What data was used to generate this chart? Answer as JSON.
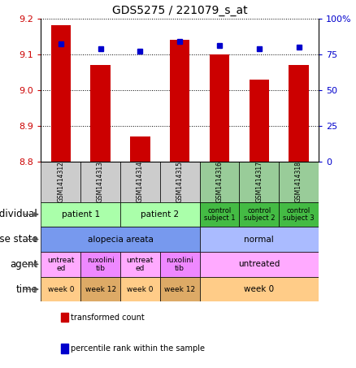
{
  "title": "GDS5275 / 221079_s_at",
  "samples": [
    "GSM1414312",
    "GSM1414313",
    "GSM1414314",
    "GSM1414315",
    "GSM1414316",
    "GSM1414317",
    "GSM1414318"
  ],
  "transformed_count": [
    9.18,
    9.07,
    8.87,
    9.14,
    9.1,
    9.03,
    9.07
  ],
  "percentile_rank": [
    82,
    79,
    77,
    84,
    81,
    79,
    80
  ],
  "ylim_left": [
    8.8,
    9.2
  ],
  "ylim_right": [
    0,
    100
  ],
  "yticks_left": [
    8.8,
    8.9,
    9.0,
    9.1,
    9.2
  ],
  "yticks_right": [
    0,
    25,
    50,
    75,
    100
  ],
  "ytick_labels_right": [
    "0",
    "25",
    "50",
    "75",
    "100%"
  ],
  "bar_color": "#cc0000",
  "dot_color": "#0000cc",
  "gsm_colors": [
    "#cccccc",
    "#cccccc",
    "#cccccc",
    "#cccccc",
    "#99cc99",
    "#99cc99",
    "#99cc99"
  ],
  "metadata_rows": [
    {
      "label": "individual",
      "cells": [
        {
          "text": "patient 1",
          "span": 2,
          "color": "#aaffaa",
          "fontsize": 7.5
        },
        {
          "text": "patient 2",
          "span": 2,
          "color": "#aaffaa",
          "fontsize": 7.5
        },
        {
          "text": "control\nsubject 1",
          "span": 1,
          "color": "#44bb44",
          "fontsize": 6.0
        },
        {
          "text": "control\nsubject 2",
          "span": 1,
          "color": "#44bb44",
          "fontsize": 6.0
        },
        {
          "text": "control\nsubject 3",
          "span": 1,
          "color": "#44bb44",
          "fontsize": 6.0
        }
      ]
    },
    {
      "label": "disease state",
      "cells": [
        {
          "text": "alopecia areata",
          "span": 4,
          "color": "#7799ee",
          "fontsize": 7.5
        },
        {
          "text": "normal",
          "span": 3,
          "color": "#aabbff",
          "fontsize": 7.5
        }
      ]
    },
    {
      "label": "agent",
      "cells": [
        {
          "text": "untreat\ned",
          "span": 1,
          "color": "#ffaaff",
          "fontsize": 6.5
        },
        {
          "text": "ruxolini\ntib",
          "span": 1,
          "color": "#ee88ff",
          "fontsize": 6.5
        },
        {
          "text": "untreat\ned",
          "span": 1,
          "color": "#ffaaff",
          "fontsize": 6.5
        },
        {
          "text": "ruxolini\ntib",
          "span": 1,
          "color": "#ee88ff",
          "fontsize": 6.5
        },
        {
          "text": "untreated",
          "span": 3,
          "color": "#ffaaff",
          "fontsize": 7.5
        }
      ]
    },
    {
      "label": "time",
      "cells": [
        {
          "text": "week 0",
          "span": 1,
          "color": "#ffcc88",
          "fontsize": 6.5
        },
        {
          "text": "week 12",
          "span": 1,
          "color": "#ddaa66",
          "fontsize": 6.5
        },
        {
          "text": "week 0",
          "span": 1,
          "color": "#ffcc88",
          "fontsize": 6.5
        },
        {
          "text": "week 12",
          "span": 1,
          "color": "#ddaa66",
          "fontsize": 6.5
        },
        {
          "text": "week 0",
          "span": 3,
          "color": "#ffcc88",
          "fontsize": 7.5
        }
      ]
    }
  ],
  "legend_items": [
    {
      "color": "#cc0000",
      "label": "transformed count"
    },
    {
      "color": "#0000cc",
      "label": "percentile rank within the sample"
    }
  ],
  "label_fontsize": 8.5,
  "title_fontsize": 10
}
